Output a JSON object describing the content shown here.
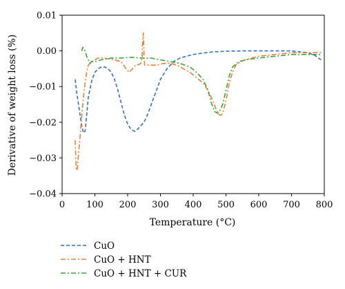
{
  "chart_data": {
    "type": "line",
    "xlabel": "Temperature (°C)",
    "ylabel": "Derivative of weight loss (%)",
    "xlim": [
      0,
      800
    ],
    "ylim": [
      -0.04,
      0.01
    ],
    "xticks": [
      "0",
      "100",
      "200",
      "300",
      "400",
      "500",
      "600",
      "700",
      "800"
    ],
    "yticks": [
      "0.01",
      "0.00",
      "−0.01",
      "−0.02",
      "−0.03",
      "−0.04"
    ],
    "xtick_values": [
      0,
      100,
      200,
      300,
      400,
      500,
      600,
      700,
      800
    ],
    "ytick_values": [
      0.01,
      0.0,
      -0.01,
      -0.02,
      -0.03,
      -0.04
    ],
    "grid": false,
    "legend_position": "bottom-left",
    "series": [
      {
        "name": "CuO",
        "color": "#2f6fc0",
        "dash": "dashed",
        "x": [
          40,
          45,
          50,
          55,
          60,
          65,
          70,
          75,
          80,
          90,
          100,
          110,
          120,
          130,
          140,
          150,
          160,
          170,
          180,
          190,
          200,
          210,
          220,
          225,
          230,
          240,
          250,
          260,
          270,
          280,
          290,
          300,
          320,
          340,
          360,
          380,
          400,
          430,
          460,
          500,
          550,
          600,
          650,
          700,
          750,
          770,
          790
        ],
        "y": [
          -0.008,
          -0.012,
          -0.015,
          -0.018,
          -0.021,
          -0.023,
          -0.0225,
          -0.018,
          -0.013,
          -0.0085,
          -0.006,
          -0.005,
          -0.0045,
          -0.0045,
          -0.005,
          -0.006,
          -0.008,
          -0.011,
          -0.0145,
          -0.018,
          -0.0205,
          -0.022,
          -0.0225,
          -0.0225,
          -0.022,
          -0.021,
          -0.02,
          -0.018,
          -0.0155,
          -0.013,
          -0.0105,
          -0.008,
          -0.005,
          -0.003,
          -0.002,
          -0.0015,
          -0.001,
          -0.0006,
          -0.0003,
          -0.0001,
          0.0,
          0.0,
          0.0,
          0.0,
          -0.0005,
          -0.0012,
          -0.0025
        ]
      },
      {
        "name": "CuO + HNT",
        "color": "#ef7d2b",
        "dash": "dashdot",
        "x": [
          40,
          43,
          46,
          50,
          55,
          60,
          65,
          70,
          75,
          80,
          90,
          100,
          110,
          120,
          140,
          160,
          180,
          195,
          205,
          215,
          225,
          235,
          240,
          244,
          246,
          248,
          250,
          252,
          258,
          270,
          290,
          310,
          330,
          350,
          370,
          390,
          410,
          430,
          445,
          460,
          470,
          480,
          485,
          490,
          500,
          510,
          520,
          530,
          545,
          560,
          600,
          650,
          700,
          750,
          790
        ],
        "y": [
          -0.025,
          -0.033,
          -0.0335,
          -0.029,
          -0.024,
          -0.018,
          -0.013,
          -0.009,
          -0.006,
          -0.004,
          -0.003,
          -0.0025,
          -0.002,
          -0.002,
          -0.0022,
          -0.0025,
          -0.003,
          -0.005,
          -0.006,
          -0.005,
          -0.004,
          -0.0038,
          -0.0035,
          -0.002,
          0.003,
          0.005,
          -0.002,
          -0.004,
          -0.004,
          -0.004,
          -0.004,
          -0.0035,
          -0.0035,
          -0.004,
          -0.005,
          -0.006,
          -0.0075,
          -0.009,
          -0.011,
          -0.014,
          -0.0165,
          -0.018,
          -0.018,
          -0.0175,
          -0.014,
          -0.009,
          -0.006,
          -0.004,
          -0.003,
          -0.0025,
          -0.0015,
          -0.001,
          -0.0005,
          -0.0005,
          -0.0005
        ]
      },
      {
        "name": "CuO + HNT + CUR",
        "color": "#3aa33a",
        "dash": "dashdot",
        "x": [
          60,
          63,
          66,
          70,
          75,
          80,
          85,
          90,
          100,
          120,
          150,
          180,
          210,
          240,
          270,
          300,
          330,
          360,
          390,
          410,
          430,
          445,
          455,
          465,
          475,
          480,
          490,
          500,
          510,
          520,
          540,
          560,
          600,
          650,
          700,
          750,
          790
        ],
        "y": [
          0.0,
          0.001,
          0.0005,
          0.0,
          -0.0015,
          -0.0025,
          -0.0035,
          -0.003,
          -0.003,
          -0.0025,
          -0.002,
          -0.002,
          -0.0018,
          -0.002,
          -0.002,
          -0.0025,
          -0.003,
          -0.0035,
          -0.0045,
          -0.006,
          -0.008,
          -0.011,
          -0.0145,
          -0.017,
          -0.0175,
          -0.017,
          -0.015,
          -0.011,
          -0.007,
          -0.0045,
          -0.003,
          -0.0025,
          -0.002,
          -0.0015,
          -0.001,
          -0.001,
          -0.001
        ]
      }
    ]
  }
}
